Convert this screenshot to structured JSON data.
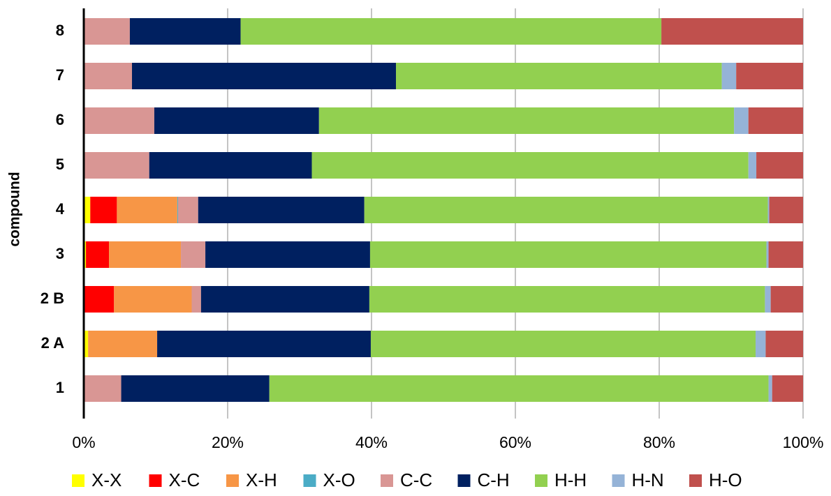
{
  "chart_data": {
    "type": "stacked_barh",
    "y_label": "compound",
    "categories": [
      "1",
      "2 A",
      "2 B",
      "3",
      "4",
      "5",
      "6",
      "7",
      "8"
    ],
    "series": [
      {
        "name": "X-X",
        "color": "#ffff00",
        "values": [
          0,
          0.6,
          0,
          0.3,
          0.9,
          0,
          0,
          0,
          0
        ]
      },
      {
        "name": "X-C",
        "color": "#ff0000",
        "values": [
          0,
          0,
          4.2,
          3.2,
          3.7,
          0,
          0,
          0,
          0
        ]
      },
      {
        "name": "X-H",
        "color": "#f79646",
        "values": [
          0,
          9.6,
          10.8,
          10.0,
          8.4,
          0,
          0,
          0,
          0
        ]
      },
      {
        "name": "X-O",
        "color": "#4bacc6",
        "values": [
          0,
          0,
          0,
          0,
          0.1,
          0,
          0,
          0,
          0
        ]
      },
      {
        "name": "C-C",
        "color": "#d99694",
        "values": [
          5.2,
          0,
          1.3,
          3.4,
          2.8,
          9.1,
          9.8,
          6.7,
          6.4
        ]
      },
      {
        "name": "C-H",
        "color": "#002060",
        "values": [
          20.6,
          29.7,
          23.4,
          22.9,
          23.1,
          22.6,
          22.9,
          36.7,
          15.4
        ]
      },
      {
        "name": "H-H",
        "color": "#92d050",
        "values": [
          69.4,
          53.5,
          55.0,
          55.1,
          56.1,
          60.7,
          57.7,
          45.3,
          58.5
        ]
      },
      {
        "name": "H-N",
        "color": "#95b3d7",
        "values": [
          0.5,
          1.4,
          0.8,
          0.3,
          0.2,
          1.1,
          2.0,
          2.0,
          0
        ]
      },
      {
        "name": "H-O",
        "color": "#c0504d",
        "values": [
          4.3,
          5.2,
          4.5,
          4.8,
          4.7,
          6.5,
          7.6,
          9.3,
          19.7
        ]
      }
    ],
    "xlim": [
      0,
      100
    ],
    "xticks": [
      {
        "value": 0,
        "label": "0%"
      },
      {
        "value": 20,
        "label": "20%"
      },
      {
        "value": 40,
        "label": "40%"
      },
      {
        "value": 60,
        "label": "60%"
      },
      {
        "value": 80,
        "label": "80%"
      },
      {
        "value": 100,
        "label": "100%"
      }
    ],
    "grid": true,
    "legend": "bottom"
  }
}
